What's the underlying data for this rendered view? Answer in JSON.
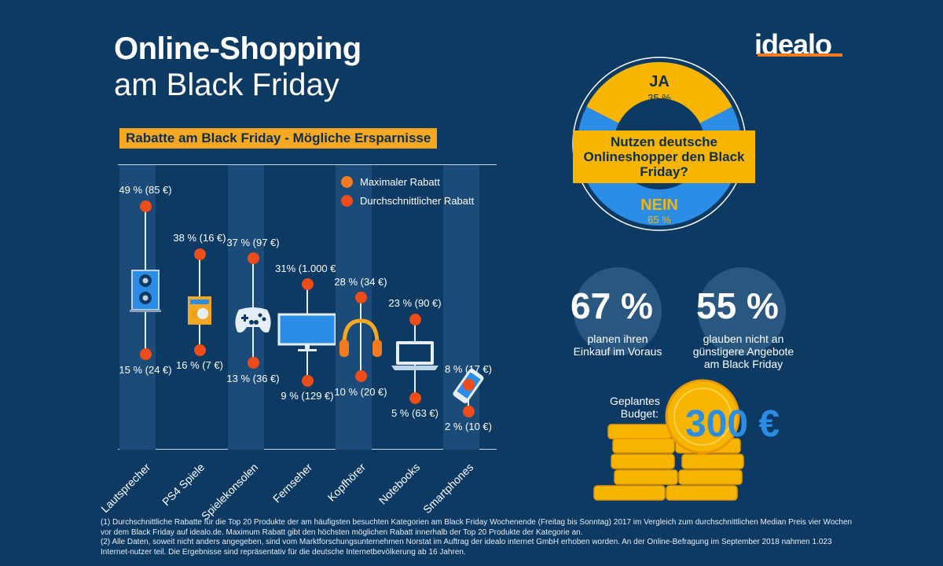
{
  "header": {
    "title_line1": "Online-Shopping",
    "title_line2": "am Black Friday",
    "logo": "idealo"
  },
  "colors": {
    "background": "#0c3a63",
    "orange": "#f7a823",
    "dot": "#ee4d1a",
    "blue": "#2b8de6",
    "yellow": "#f7b500"
  },
  "chart_data": [
    {
      "type": "range",
      "title": "Rabatte am Black Friday - Mögliche Ersparnisse",
      "legend": [
        "Maximaler Rabatt",
        "Durchschnittlicher Rabatt"
      ],
      "categories": [
        "Lautsprecher",
        "PS4 Spiele",
        "Spielekonsolen",
        "Fernseher",
        "Kopfhörer",
        "Notebooks",
        "Smartphones"
      ],
      "series": [
        {
          "name": "Maximaler Rabatt",
          "values": [
            49,
            38,
            37,
            31,
            28,
            23,
            8
          ],
          "labels": [
            "49 % (85 €)",
            "38 % (16 €)",
            "37 % (97 €)",
            "31% (1.000 €)",
            "28 % (34 €)",
            "23 % (90 €)",
            "8 % (17 €)"
          ]
        },
        {
          "name": "Durchschnittlicher Rabatt",
          "values": [
            15,
            16,
            13,
            9,
            10,
            5,
            2
          ],
          "labels": [
            "15 % (24 €)",
            "16 % (7 €)",
            "13 % (36 €)",
            "9 % (129 €)",
            "10 % (20 €)",
            "5 % (63 €)",
            "2 % (10 €)"
          ]
        }
      ],
      "icons": [
        "speaker-icon",
        "game-case-icon",
        "gamepad-icon",
        "tv-icon",
        "headphones-icon",
        "laptop-icon",
        "smartphone-icon"
      ]
    },
    {
      "type": "pie",
      "title": "Nutzen deutsche Onlineshopper den Black Friday?",
      "categories": [
        "JA",
        "NEIN"
      ],
      "values": [
        35,
        65
      ],
      "labels": [
        "35 %",
        "65 %"
      ]
    }
  ],
  "stats": [
    {
      "value": "67 %",
      "text_lines": [
        "planen ihren",
        "Einkauf im Voraus"
      ]
    },
    {
      "value": "55 %",
      "text_lines": [
        "glauben nicht an",
        "günstigere Angebote",
        "am Black Friday"
      ]
    }
  ],
  "budget": {
    "label_lines": [
      "Geplantes",
      "Budget:"
    ],
    "value": "300 €",
    "icon": "coin-stack-icon"
  },
  "footnotes": [
    "(1) Durchschnittliche Rabatte für die Top 20 Produkte der am häufigsten besuchten Kategorien am Black Friday Wochenende (Freitag bis Sonntag) 2017 im Vergleich zum durchschnittlichen Median Preis  vier Wochen vor dem Black Friday auf idealo.de. Maximum Rabatt gibt den höchsten möglichen Rabatt innerhalb der Top 20 Produkte der Kategorie an.",
    "(2) Alle Daten, soweit nicht anders angegeben, sind vom Marktforschungsunternehmen Norstat im Auftrag der idealo internet GmbH erhoben worden. An der Online-Befragung im September 2018 nahmen 1.023 Internet-nutzer teil. Die Ergebnisse sind repräsentativ für die deutsche Internetbevölkerung ab 16 Jahren."
  ]
}
